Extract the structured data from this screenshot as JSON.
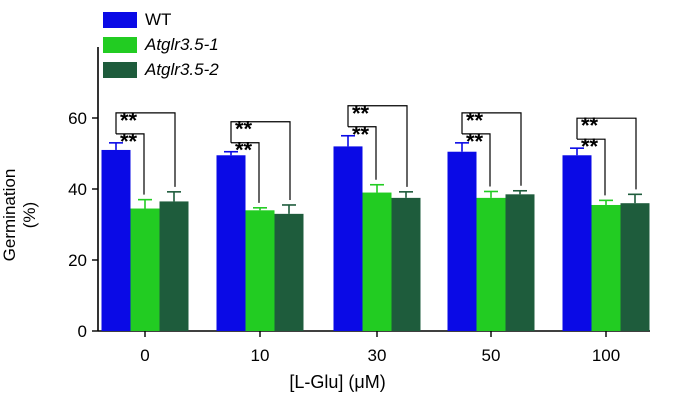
{
  "chart_data": {
    "type": "bar",
    "xlabel": "[L-Glu] (μM)",
    "ylabel": "Germination (%)",
    "categories": [
      "0",
      "10",
      "30",
      "50",
      "100"
    ],
    "ylim": [
      0,
      80
    ],
    "yticks": [
      0,
      20,
      40,
      60
    ],
    "grid": false,
    "legend_position": "top-left",
    "series": [
      {
        "name": "WT",
        "italic": false,
        "color": "#0a0ae6",
        "values": [
          51,
          49.5,
          52,
          50.5,
          49.5
        ],
        "errors": [
          2,
          1,
          3,
          2.5,
          2
        ]
      },
      {
        "name": "Atglr3.5-1",
        "italic": true,
        "color": "#22cc22",
        "values": [
          34.5,
          34,
          39,
          37.5,
          35.5
        ],
        "errors": [
          2.5,
          0.7,
          2.2,
          1.8,
          1.3
        ]
      },
      {
        "name": "Atglr3.5-2",
        "italic": true,
        "color": "#1e5c3c",
        "values": [
          36.5,
          33,
          37.5,
          38.5,
          36
        ],
        "errors": [
          2.7,
          2.5,
          1.7,
          1,
          2.5
        ]
      }
    ],
    "significance": {
      "label": "**",
      "comparisons": [
        {
          "category": "0",
          "from_series": "WT",
          "to_series": "Atglr3.5-1"
        },
        {
          "category": "0",
          "from_series": "WT",
          "to_series": "Atglr3.5-2"
        },
        {
          "category": "10",
          "from_series": "WT",
          "to_series": "Atglr3.5-1"
        },
        {
          "category": "10",
          "from_series": "WT",
          "to_series": "Atglr3.5-2"
        },
        {
          "category": "30",
          "from_series": "WT",
          "to_series": "Atglr3.5-1"
        },
        {
          "category": "30",
          "from_series": "WT",
          "to_series": "Atglr3.5-2"
        },
        {
          "category": "50",
          "from_series": "WT",
          "to_series": "Atglr3.5-1"
        },
        {
          "category": "50",
          "from_series": "WT",
          "to_series": "Atglr3.5-2"
        },
        {
          "category": "100",
          "from_series": "WT",
          "to_series": "Atglr3.5-1"
        },
        {
          "category": "100",
          "from_series": "WT",
          "to_series": "Atglr3.5-2"
        }
      ]
    }
  }
}
